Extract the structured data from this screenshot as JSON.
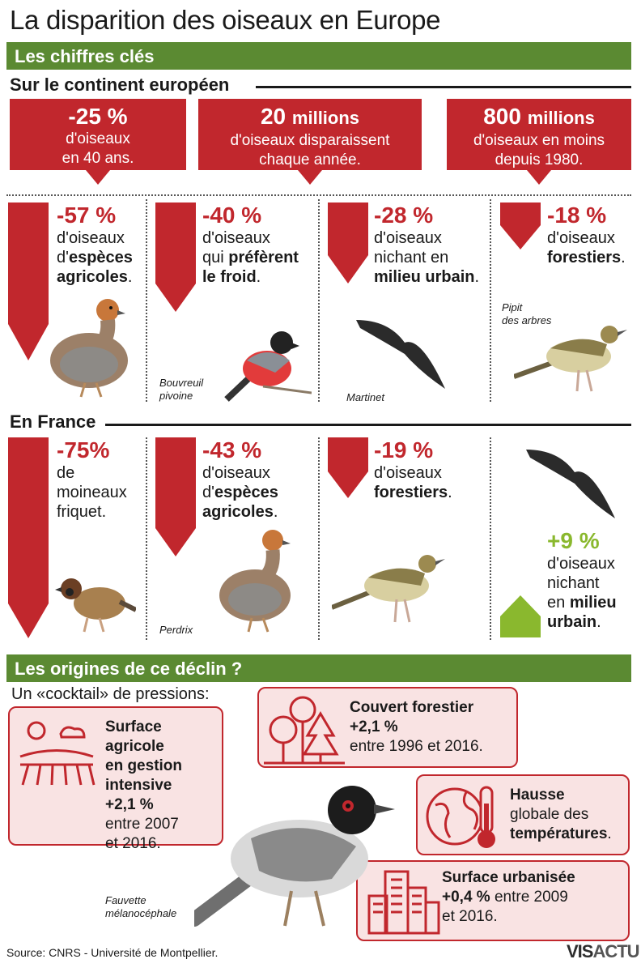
{
  "title": "La disparition des oiseaux en Europe",
  "section1": {
    "label": "Les chiffres clés"
  },
  "europe": {
    "heading": "Sur le continent européen",
    "key_figures": [
      {
        "big": "-25 %",
        "text1": "d'oiseaux",
        "text2": "en 40 ans."
      },
      {
        "big": "20",
        "big_small": "millions",
        "text1": "d'oiseaux disparaissent",
        "text2": "chaque année."
      },
      {
        "big": "800",
        "big_small": "millions",
        "text1": "d'oiseaux en moins",
        "text2": "depuis 1980."
      }
    ],
    "stats": [
      {
        "pct": "-57 %",
        "l1": "d'oiseaux",
        "l2a": "d'",
        "l2b": "espèces",
        "l3": "agricoles",
        "l3end": "."
      },
      {
        "pct": "-40 %",
        "l1": "d'oiseaux",
        "l2a": "qui ",
        "l2b": "préfèrent",
        "l3": "le froid",
        "l3end": "."
      },
      {
        "pct": "-28 %",
        "l1": "d'oiseaux",
        "l2a": "nichant en",
        "l3": "milieu urbain",
        "l3end": "."
      },
      {
        "pct": "-18 %",
        "l1": "d'oiseaux",
        "l2b": "forestiers",
        "l2end": "."
      }
    ],
    "captions": {
      "bouvreuil1": "Bouvreuil",
      "bouvreuil2": "pivoine",
      "martinet": "Martinet",
      "pipit1": "Pipit",
      "pipit2": "des arbres"
    }
  },
  "france": {
    "heading": "En France",
    "stats": [
      {
        "pct": "-75%",
        "l1": "de",
        "l2": "moineaux",
        "l3": "friquet."
      },
      {
        "pct": "-43 %",
        "l1": "d'oiseaux",
        "l2a": "d'",
        "l2b": "espèces",
        "l3": "agricoles",
        "l3end": "."
      },
      {
        "pct": "-19 %",
        "l1": "d'oiseaux",
        "l2b": "forestiers",
        "l2end": "."
      },
      {
        "pct": "+9 %",
        "l1": "d'oiseaux",
        "l2": "nichant",
        "l3a": "en ",
        "l3b": "milieu",
        "l4": "urbain",
        "l4end": "."
      }
    ],
    "captions": {
      "perdrix": "Perdrix"
    }
  },
  "section2": {
    "label": "Les origines de ce déclin ?",
    "intro": "Un «cocktail» de pressions:"
  },
  "pressures": {
    "agri": {
      "t1": "Surface agricole",
      "t2": "en gestion",
      "t3": "intensive",
      "val": "+2,1 %",
      "p1": "entre 2007",
      "p2": "et 2016."
    },
    "forest": {
      "t1": "Couvert forestier",
      "val": "+2,1 %",
      "p1": "entre 1996 et 2016."
    },
    "temp": {
      "t1": "Hausse",
      "t2": "globale des",
      "t3": "températures",
      "t3end": "."
    },
    "urban": {
      "t1": "Surface urbanisée",
      "val": "+0,4 %",
      "p1": " entre 2009",
      "p2": "et 2016."
    }
  },
  "fauvette": {
    "c1": "Fauvette",
    "c2": "mélanocéphale"
  },
  "source": "Source: CNRS - Université de Montpellier.",
  "logo": {
    "a": "VIS",
    "b": "ACTU"
  },
  "colors": {
    "red": "#c1272d",
    "green": "#5b8a32",
    "lightgreen": "#8ab82e",
    "pink": "#f9e3e3"
  }
}
